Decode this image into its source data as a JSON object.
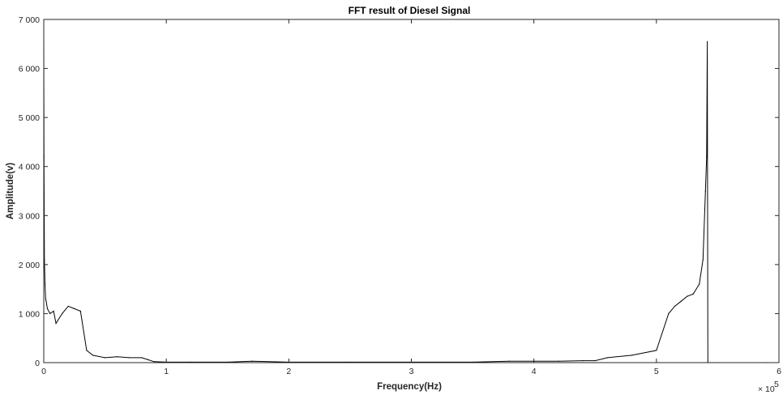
{
  "chart_data": {
    "type": "line",
    "title": "FFT result of Diesel Signal",
    "xlabel": "Frequency(Hz)",
    "ylabel": "Amplitude(v)",
    "x_exponent_label": "× 10",
    "x_exponent_power": "5",
    "xlim": [
      0,
      6
    ],
    "ylim": [
      0,
      7000
    ],
    "x_scale_factor": 100000,
    "xticks": [
      0,
      1,
      2,
      3,
      4,
      5,
      6
    ],
    "xtick_labels": [
      "0",
      "1",
      "2",
      "3",
      "4",
      "5",
      "6"
    ],
    "yticks": [
      0,
      1000,
      2000,
      3000,
      4000,
      5000,
      6000,
      7000
    ],
    "ytick_labels": [
      "0",
      "1 000",
      "2 000",
      "3 000",
      "4 000",
      "5 000",
      "6 000",
      "7 000"
    ],
    "grid": false,
    "line_color": "#000000",
    "series": [
      {
        "x": [
          0,
          0.002,
          0.005,
          0.01,
          0.015,
          0.02,
          0.03,
          0.05,
          0.08,
          0.1,
          0.15,
          0.2,
          0.25,
          0.3,
          0.35,
          0.4,
          0.5,
          0.6,
          0.7,
          0.8,
          0.85,
          0.9,
          1.0,
          1.2,
          1.5,
          1.7,
          2.0,
          2.5,
          3.0,
          3.5,
          3.8,
          4.0,
          4.2,
          4.4,
          4.5,
          4.6,
          4.8,
          5.0,
          5.1,
          5.15,
          5.2,
          5.25,
          5.3,
          5.35,
          5.38,
          5.4,
          5.41,
          5.415,
          5.42,
          5.44,
          5.5,
          5.9
        ],
        "y": [
          6550,
          4200,
          2100,
          1600,
          1300,
          1250,
          1100,
          1000,
          1050,
          800,
          1000,
          1150,
          1100,
          1050,
          250,
          150,
          100,
          120,
          100,
          100,
          60,
          20,
          10,
          10,
          10,
          30,
          10,
          10,
          10,
          10,
          30,
          30,
          30,
          40,
          40,
          100,
          150,
          250,
          1000,
          1150,
          1250,
          1350,
          1400,
          1600,
          2100,
          3500,
          4200,
          6550,
          0,
          0,
          0,
          0
        ]
      }
    ]
  }
}
